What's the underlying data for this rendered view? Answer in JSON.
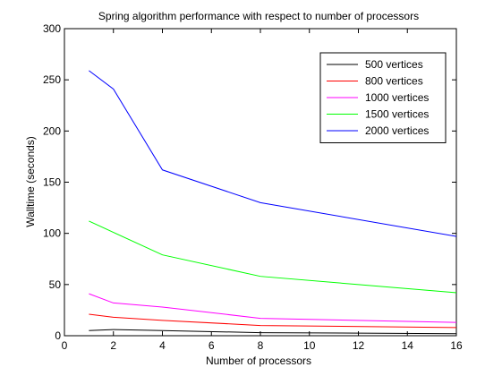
{
  "chart_data": {
    "type": "line",
    "title": "Spring algorithm performance with respect to number of processors",
    "xlabel": "Number of processors",
    "ylabel": "Walltime (seconds)",
    "xlim": [
      0,
      16
    ],
    "ylim": [
      0,
      300
    ],
    "xticks": [
      0,
      2,
      4,
      6,
      8,
      10,
      12,
      14,
      16
    ],
    "yticks": [
      0,
      50,
      100,
      150,
      200,
      250,
      300
    ],
    "grid": false,
    "legend_position": "top-right",
    "x": [
      1,
      2,
      4,
      8,
      16
    ],
    "series": [
      {
        "name": "500 vertices",
        "color": "#000000",
        "values": [
          5,
          6,
          5,
          3,
          2
        ]
      },
      {
        "name": "800 vertices",
        "color": "#ff0000",
        "values": [
          21,
          18,
          15,
          10,
          8
        ]
      },
      {
        "name": "1000 vertices",
        "color": "#ff00ff",
        "values": [
          41,
          32,
          28,
          17,
          13
        ]
      },
      {
        "name": "1500 vertices",
        "color": "#00ff00",
        "values": [
          112,
          101,
          79,
          58,
          42
        ]
      },
      {
        "name": "2000 vertices",
        "color": "#0000ff",
        "values": [
          259,
          241,
          162,
          130,
          97
        ]
      }
    ]
  }
}
